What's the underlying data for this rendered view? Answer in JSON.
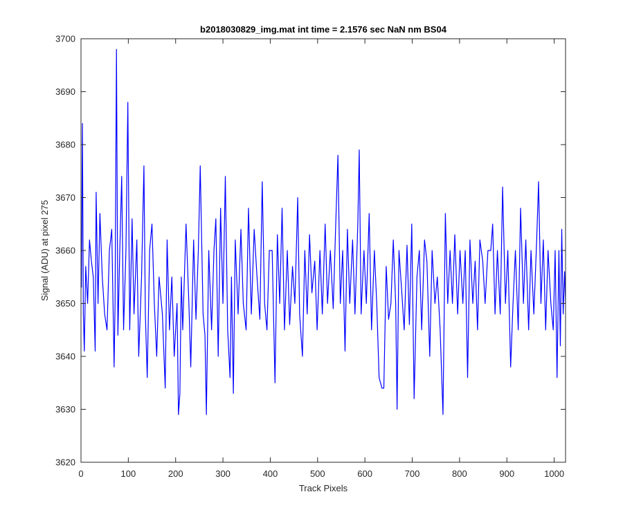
{
  "chart_data": {
    "type": "line",
    "title": "b2018030829_img.mat int time = 2.1576 sec  NaN nm BS04",
    "xlabel": "Track Pixels",
    "ylabel": "Signal (ADU) at pixel 275",
    "xlim": [
      0,
      1024
    ],
    "ylim": [
      3620,
      3700
    ],
    "xticks": [
      0,
      100,
      200,
      300,
      400,
      500,
      600,
      700,
      800,
      900,
      1000
    ],
    "yticks": [
      3620,
      3630,
      3640,
      3650,
      3660,
      3670,
      3680,
      3690,
      3700
    ],
    "grid": false,
    "series": [
      {
        "color": "#0000ff",
        "summary": {
          "n_points": 1024,
          "baseline": 3655,
          "min": 3629,
          "max": 3698
        },
        "points": [
          [
            1,
            3653
          ],
          [
            3,
            3684
          ],
          [
            5,
            3648
          ],
          [
            7,
            3641
          ],
          [
            10,
            3657
          ],
          [
            14,
            3650
          ],
          [
            18,
            3662
          ],
          [
            22,
            3658
          ],
          [
            26,
            3655
          ],
          [
            30,
            3641
          ],
          [
            32,
            3671
          ],
          [
            36,
            3650
          ],
          [
            40,
            3667
          ],
          [
            45,
            3655
          ],
          [
            50,
            3648
          ],
          [
            55,
            3645
          ],
          [
            60,
            3660
          ],
          [
            65,
            3664
          ],
          [
            70,
            3638
          ],
          [
            72,
            3650
          ],
          [
            75,
            3698
          ],
          [
            78,
            3644
          ],
          [
            82,
            3660
          ],
          [
            86,
            3674
          ],
          [
            90,
            3645
          ],
          [
            95,
            3660
          ],
          [
            99,
            3688
          ],
          [
            103,
            3645
          ],
          [
            108,
            3666
          ],
          [
            112,
            3648
          ],
          [
            118,
            3662
          ],
          [
            122,
            3640
          ],
          [
            128,
            3655
          ],
          [
            133,
            3676
          ],
          [
            136,
            3648
          ],
          [
            140,
            3636
          ],
          [
            145,
            3660
          ],
          [
            150,
            3665
          ],
          [
            155,
            3650
          ],
          [
            160,
            3640
          ],
          [
            165,
            3655
          ],
          [
            172,
            3648
          ],
          [
            178,
            3634
          ],
          [
            182,
            3662
          ],
          [
            187,
            3645
          ],
          [
            192,
            3655
          ],
          [
            197,
            3640
          ],
          [
            203,
            3650
          ],
          [
            206,
            3629
          ],
          [
            209,
            3633
          ],
          [
            212,
            3655
          ],
          [
            215,
            3645
          ],
          [
            222,
            3665
          ],
          [
            228,
            3650
          ],
          [
            232,
            3638
          ],
          [
            238,
            3662
          ],
          [
            243,
            3647
          ],
          [
            248,
            3660
          ],
          [
            252,
            3676
          ],
          [
            258,
            3648
          ],
          [
            262,
            3644
          ],
          [
            265,
            3629
          ],
          [
            270,
            3660
          ],
          [
            276,
            3645
          ],
          [
            281,
            3660
          ],
          [
            285,
            3666
          ],
          [
            290,
            3640
          ],
          [
            295,
            3668
          ],
          [
            300,
            3650
          ],
          [
            305,
            3674
          ],
          [
            310,
            3645
          ],
          [
            315,
            3636
          ],
          [
            318,
            3655
          ],
          [
            322,
            3633
          ],
          [
            326,
            3662
          ],
          [
            332,
            3648
          ],
          [
            338,
            3664
          ],
          [
            343,
            3650
          ],
          [
            349,
            3645
          ],
          [
            354,
            3668
          ],
          [
            360,
            3648
          ],
          [
            366,
            3664
          ],
          [
            372,
            3655
          ],
          [
            378,
            3647
          ],
          [
            383,
            3673
          ],
          [
            388,
            3650
          ],
          [
            393,
            3645
          ],
          [
            398,
            3660
          ],
          [
            404,
            3660
          ],
          [
            410,
            3635
          ],
          [
            415,
            3663
          ],
          [
            420,
            3650
          ],
          [
            425,
            3668
          ],
          [
            430,
            3645
          ],
          [
            436,
            3660
          ],
          [
            441,
            3646
          ],
          [
            447,
            3657
          ],
          [
            452,
            3650
          ],
          [
            458,
            3670
          ],
          [
            462,
            3648
          ],
          [
            468,
            3640
          ],
          [
            473,
            3660
          ],
          [
            478,
            3648
          ],
          [
            483,
            3663
          ],
          [
            488,
            3652
          ],
          [
            494,
            3658
          ],
          [
            499,
            3645
          ],
          [
            505,
            3660
          ],
          [
            510,
            3648
          ],
          [
            516,
            3665
          ],
          [
            521,
            3650
          ],
          [
            527,
            3660
          ],
          [
            533,
            3649
          ],
          [
            538,
            3664
          ],
          [
            543,
            3678
          ],
          [
            548,
            3650
          ],
          [
            553,
            3660
          ],
          [
            558,
            3641
          ],
          [
            563,
            3664
          ],
          [
            568,
            3650
          ],
          [
            574,
            3662
          ],
          [
            579,
            3648
          ],
          [
            585,
            3665
          ],
          [
            588,
            3679
          ],
          [
            592,
            3648
          ],
          [
            598,
            3660
          ],
          [
            603,
            3650
          ],
          [
            609,
            3667
          ],
          [
            614,
            3645
          ],
          [
            620,
            3660
          ],
          [
            625,
            3650
          ],
          [
            630,
            3636
          ],
          [
            636,
            3634
          ],
          [
            640,
            3634
          ],
          [
            645,
            3657
          ],
          [
            650,
            3647
          ],
          [
            655,
            3650
          ],
          [
            660,
            3662
          ],
          [
            665,
            3650
          ],
          [
            668,
            3630
          ],
          [
            672,
            3660
          ],
          [
            678,
            3652
          ],
          [
            683,
            3645
          ],
          [
            689,
            3661
          ],
          [
            694,
            3646
          ],
          [
            699,
            3665
          ],
          [
            704,
            3632
          ],
          [
            710,
            3655
          ],
          [
            715,
            3660
          ],
          [
            720,
            3645
          ],
          [
            726,
            3662
          ],
          [
            731,
            3658
          ],
          [
            737,
            3640
          ],
          [
            742,
            3660
          ],
          [
            748,
            3650
          ],
          [
            753,
            3655
          ],
          [
            759,
            3645
          ],
          [
            765,
            3629
          ],
          [
            770,
            3667
          ],
          [
            775,
            3650
          ],
          [
            780,
            3660
          ],
          [
            785,
            3650
          ],
          [
            790,
            3663
          ],
          [
            796,
            3648
          ],
          [
            801,
            3660
          ],
          [
            807,
            3650
          ],
          [
            812,
            3660
          ],
          [
            817,
            3636
          ],
          [
            822,
            3662
          ],
          [
            828,
            3650
          ],
          [
            833,
            3658
          ],
          [
            838,
            3645
          ],
          [
            843,
            3662
          ],
          [
            849,
            3658
          ],
          [
            854,
            3650
          ],
          [
            860,
            3660
          ],
          [
            866,
            3660
          ],
          [
            870,
            3665
          ],
          [
            875,
            3648
          ],
          [
            880,
            3660
          ],
          [
            886,
            3648
          ],
          [
            891,
            3672
          ],
          [
            897,
            3650
          ],
          [
            902,
            3660
          ],
          [
            908,
            3638
          ],
          [
            913,
            3650
          ],
          [
            918,
            3660
          ],
          [
            924,
            3645
          ],
          [
            929,
            3668
          ],
          [
            935,
            3650
          ],
          [
            940,
            3662
          ],
          [
            946,
            3645
          ],
          [
            951,
            3660
          ],
          [
            957,
            3648
          ],
          [
            963,
            3662
          ],
          [
            967,
            3673
          ],
          [
            972,
            3650
          ],
          [
            977,
            3662
          ],
          [
            982,
            3645
          ],
          [
            987,
            3660
          ],
          [
            993,
            3650
          ],
          [
            998,
            3645
          ],
          [
            1002,
            3660
          ],
          [
            1006,
            3636
          ],
          [
            1010,
            3660
          ],
          [
            1013,
            3642
          ],
          [
            1016,
            3664
          ],
          [
            1019,
            3648
          ],
          [
            1022,
            3656
          ],
          [
            1024,
            3650
          ]
        ]
      }
    ]
  }
}
